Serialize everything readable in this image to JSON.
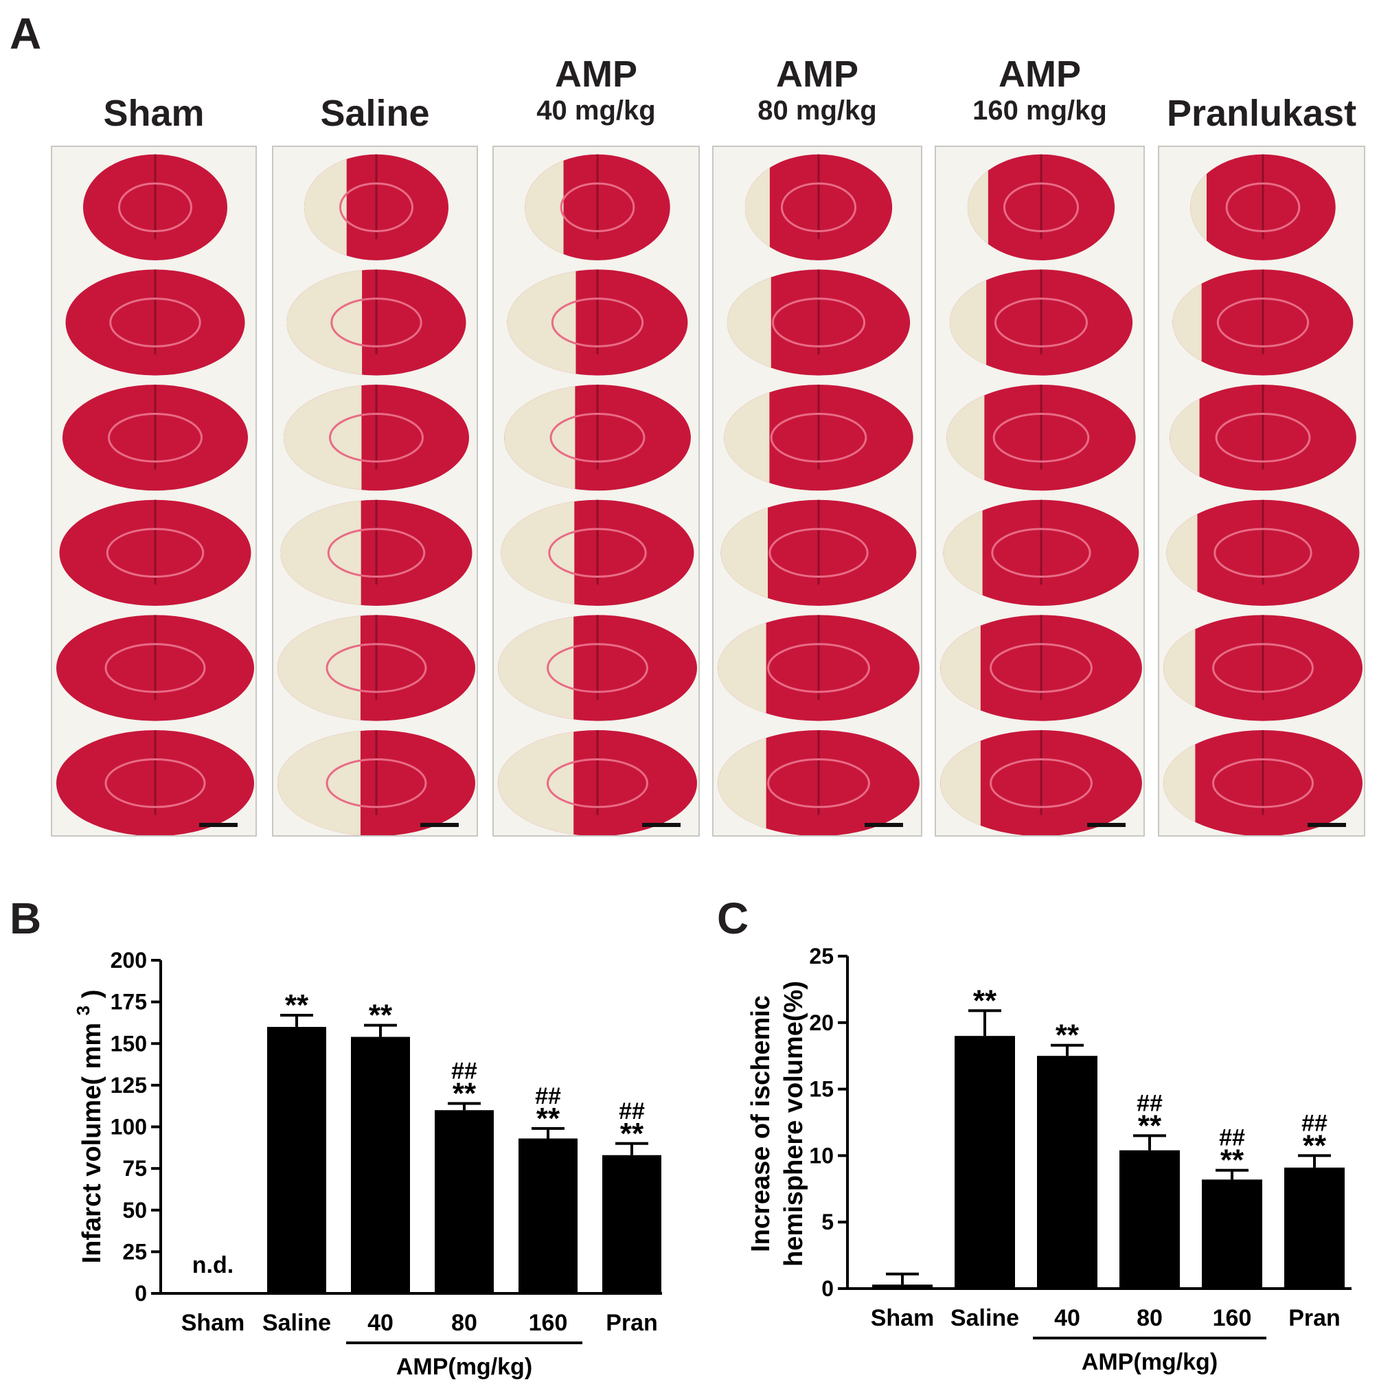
{
  "panel_a": {
    "letter": "A",
    "groups": [
      {
        "line1": "Sham",
        "line2": "",
        "infarct": 0.0
      },
      {
        "line1": "Saline",
        "line2": "",
        "infarct": 0.42
      },
      {
        "line1": "AMP",
        "line2": "40 mg/kg",
        "infarct": 0.38
      },
      {
        "line1": "AMP",
        "line2": "80 mg/kg",
        "infarct": 0.24
      },
      {
        "line1": "AMP",
        "line2": "160 mg/kg",
        "infarct": 0.2
      },
      {
        "line1": "Pranlukast",
        "line2": "",
        "infarct": 0.16
      }
    ],
    "colors": {
      "viable": "#c8163a",
      "infarct": "#ece5cf",
      "background": "#f4f3ee"
    }
  },
  "chart_data": [
    {
      "panel": "B",
      "type": "bar",
      "categories": [
        "Sham",
        "Saline",
        "40",
        "80",
        "160",
        "Pran"
      ],
      "values": [
        0,
        160,
        154,
        110,
        93,
        83
      ],
      "errors": [
        0,
        7,
        7,
        4,
        6,
        7
      ],
      "annotations": [
        [
          "n.d."
        ],
        [
          "**"
        ],
        [
          "**"
        ],
        [
          "##",
          "**"
        ],
        [
          "##",
          "**"
        ],
        [
          "##",
          "**"
        ]
      ],
      "ylabel_main": "Infarct volume( mm",
      "ylabel_sup": "3",
      "ylabel_close": ")",
      "ylim": [
        0,
        200
      ],
      "yticks": [
        0,
        25,
        50,
        75,
        100,
        125,
        150,
        175,
        200
      ],
      "group_label": "AMP(mg/kg)",
      "bar_color": "#000000"
    },
    {
      "panel": "C",
      "type": "bar",
      "categories": [
        "Sham",
        "Saline",
        "40",
        "80",
        "160",
        "Pran"
      ],
      "values": [
        0.3,
        19.0,
        17.5,
        10.4,
        8.2,
        9.1
      ],
      "errors": [
        0.8,
        1.9,
        0.8,
        1.1,
        0.7,
        0.9
      ],
      "annotations": [
        [],
        [
          "**"
        ],
        [
          "**"
        ],
        [
          "##",
          "**"
        ],
        [
          "##",
          "**"
        ],
        [
          "##",
          "**"
        ]
      ],
      "ylabel_line1": "Increase of ischemic",
      "ylabel_line2": "hemisphere volume(%)",
      "ylim": [
        0,
        25
      ],
      "yticks": [
        0,
        5,
        10,
        15,
        20,
        25
      ],
      "group_label": "AMP(mg/kg)",
      "bar_color": "#000000"
    }
  ]
}
